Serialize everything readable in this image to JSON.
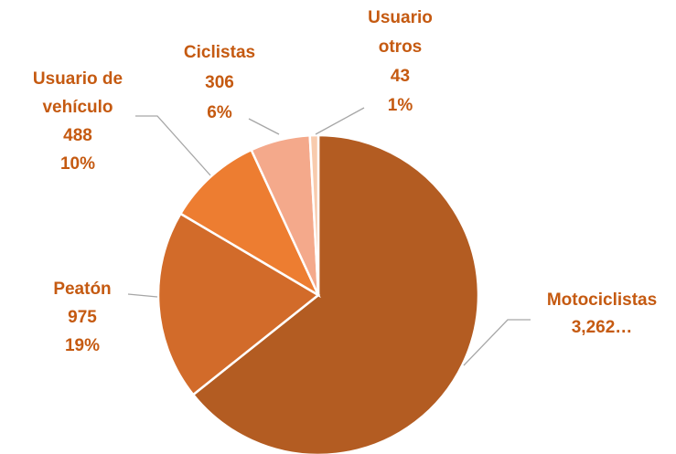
{
  "chart_data": {
    "type": "pie",
    "categories": [
      "Motociclistas",
      "Peatón",
      "Usuario de vehículo",
      "Ciclistas",
      "Usuario otros"
    ],
    "values": [
      3262,
      975,
      488,
      306,
      43
    ],
    "value_labels": [
      "3,262…",
      "975",
      "488",
      "306",
      "43"
    ],
    "percent_labels": [
      null,
      "19%",
      "10%",
      "6%",
      "1%"
    ],
    "colors": [
      "#b35c22",
      "#d26b2a",
      "#ed7d31",
      "#f4a98b",
      "#f8cbad"
    ],
    "label_color": "#c55a11"
  }
}
